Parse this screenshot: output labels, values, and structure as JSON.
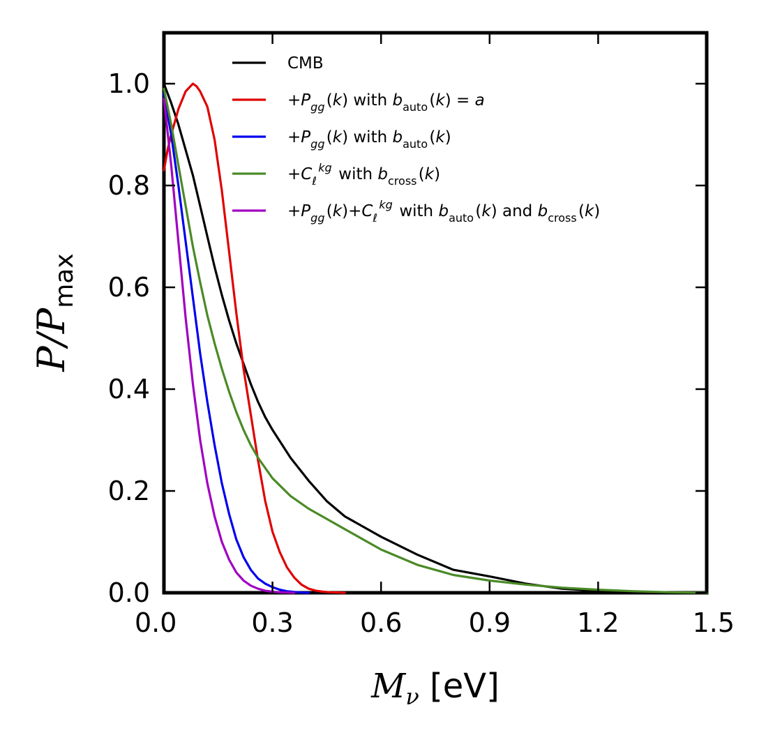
{
  "chart_data": {
    "type": "line",
    "xlabel": "M_ν [eV]",
    "ylabel": "P/P_max",
    "xlim": [
      0.0,
      1.5
    ],
    "ylim": [
      0.0,
      1.1
    ],
    "xticks": [
      "0.0",
      "0.3",
      "0.6",
      "0.9",
      "1.2",
      "1.5"
    ],
    "yticks": [
      "0.0",
      "0.2",
      "0.4",
      "0.6",
      "0.8",
      "1.0"
    ],
    "legend_position": "top-right",
    "grid": false,
    "series": [
      {
        "name": "CMB",
        "color": "#000000",
        "x": [
          0.0,
          0.02,
          0.04,
          0.06,
          0.08,
          0.1,
          0.12,
          0.14,
          0.16,
          0.18,
          0.2,
          0.22,
          0.24,
          0.26,
          0.28,
          0.3,
          0.35,
          0.4,
          0.45,
          0.5,
          0.55,
          0.6,
          0.7,
          0.8,
          0.9,
          1.0,
          1.1,
          1.2,
          1.3,
          1.4,
          1.5
        ],
        "y": [
          1.0,
          0.962,
          0.92,
          0.87,
          0.82,
          0.76,
          0.7,
          0.64,
          0.585,
          0.535,
          0.49,
          0.45,
          0.41,
          0.375,
          0.345,
          0.32,
          0.265,
          0.22,
          0.18,
          0.15,
          0.13,
          0.11,
          0.075,
          0.045,
          0.032,
          0.018,
          0.008,
          0.004,
          0.002,
          0.001,
          0.0
        ]
      },
      {
        "name": "+P_gg(k) with b_auto(k) = a",
        "color": "#e00000",
        "x": [
          0.0,
          0.01,
          0.02,
          0.03,
          0.04,
          0.06,
          0.08,
          0.09,
          0.1,
          0.12,
          0.14,
          0.16,
          0.18,
          0.2,
          0.22,
          0.24,
          0.26,
          0.28,
          0.3,
          0.32,
          0.34,
          0.36,
          0.38,
          0.4,
          0.42,
          0.44,
          0.46,
          0.48,
          0.5
        ],
        "y": [
          0.83,
          0.87,
          0.9,
          0.925,
          0.95,
          0.985,
          1.0,
          0.995,
          0.985,
          0.955,
          0.89,
          0.79,
          0.67,
          0.55,
          0.44,
          0.35,
          0.26,
          0.18,
          0.12,
          0.08,
          0.05,
          0.03,
          0.016,
          0.008,
          0.004,
          0.002,
          0.001,
          0.0005,
          0.0
        ]
      },
      {
        "name": "+P_gg(k) with b_auto(k)",
        "color": "#0000ee",
        "x": [
          0.0,
          0.02,
          0.04,
          0.06,
          0.08,
          0.1,
          0.12,
          0.14,
          0.16,
          0.18,
          0.2,
          0.22,
          0.24,
          0.26,
          0.28,
          0.3,
          0.32,
          0.34,
          0.36,
          0.38,
          0.4
        ],
        "y": [
          0.98,
          0.9,
          0.8,
          0.69,
          0.58,
          0.47,
          0.375,
          0.29,
          0.215,
          0.155,
          0.105,
          0.07,
          0.045,
          0.028,
          0.018,
          0.011,
          0.006,
          0.003,
          0.0015,
          0.0005,
          0.0
        ]
      },
      {
        "name": "+C_ℓ^kg with b_cross(k)",
        "color": "#4a8a26",
        "x": [
          0.0,
          0.02,
          0.04,
          0.06,
          0.08,
          0.1,
          0.12,
          0.14,
          0.16,
          0.18,
          0.2,
          0.22,
          0.24,
          0.26,
          0.28,
          0.3,
          0.35,
          0.4,
          0.45,
          0.5,
          0.6,
          0.7,
          0.8,
          0.9,
          1.0,
          1.1,
          1.2,
          1.3,
          1.4,
          1.5
        ],
        "y": [
          0.99,
          0.92,
          0.84,
          0.76,
          0.68,
          0.61,
          0.545,
          0.49,
          0.44,
          0.395,
          0.355,
          0.32,
          0.29,
          0.265,
          0.245,
          0.225,
          0.19,
          0.165,
          0.145,
          0.125,
          0.085,
          0.055,
          0.035,
          0.024,
          0.016,
          0.01,
          0.006,
          0.003,
          0.001,
          0.0
        ]
      },
      {
        "name": "+P_gg(k)+C_ℓ^kg with b_auto(k) and b_cross(k)",
        "color": "#a000c0",
        "x": [
          0.0,
          0.02,
          0.04,
          0.06,
          0.08,
          0.1,
          0.12,
          0.14,
          0.16,
          0.18,
          0.2,
          0.22,
          0.24,
          0.26,
          0.28,
          0.3,
          0.32,
          0.34,
          0.36
        ],
        "y": [
          0.97,
          0.84,
          0.69,
          0.54,
          0.41,
          0.3,
          0.215,
          0.15,
          0.1,
          0.065,
          0.04,
          0.024,
          0.014,
          0.008,
          0.004,
          0.002,
          0.001,
          0.0005,
          0.0
        ]
      }
    ]
  }
}
